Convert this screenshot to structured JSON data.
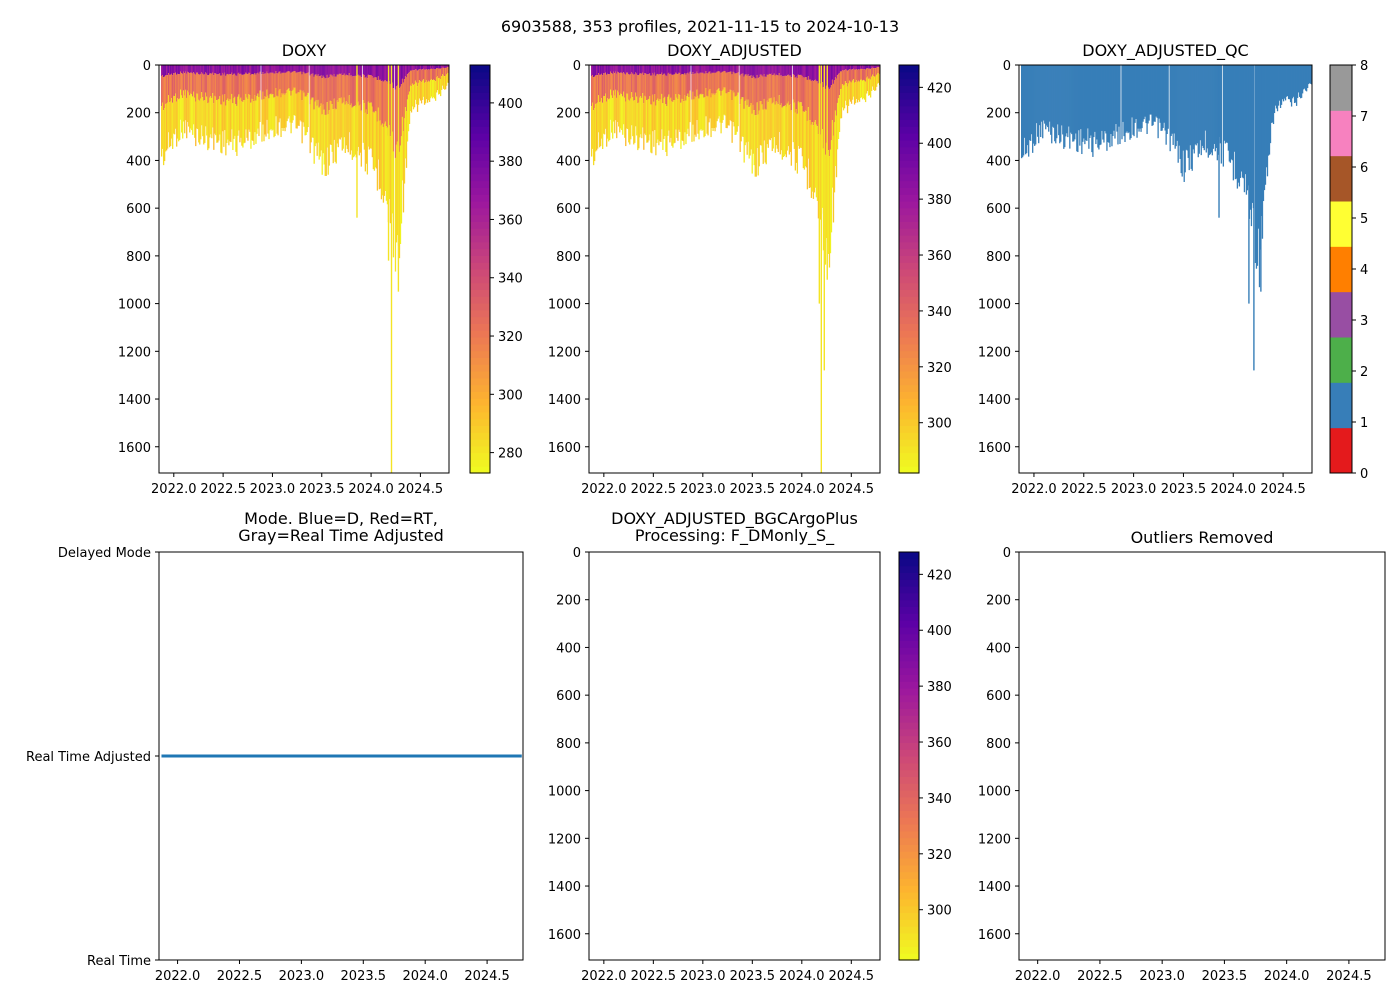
{
  "figure_title": "6903588, 353 profiles, 2021-11-15 to 2024-10-13",
  "colors": {
    "plasma_stops": [
      "#f0f921",
      "#fdb42f",
      "#ed7953",
      "#cc4778",
      "#9c179e",
      "#5c01a6",
      "#0d0887"
    ],
    "qc_blue": "#377eb8",
    "mode_line": "#1f77b4"
  },
  "chart_data": [
    {
      "id": "doxy",
      "type": "heatmap",
      "title": "DOXY",
      "xlim": [
        2021.85,
        2024.79
      ],
      "ylim": [
        1710,
        0
      ],
      "x_ticks": [
        "2022.0",
        "2022.5",
        "2023.0",
        "2023.5",
        "2024.0",
        "2024.5"
      ],
      "x_tick_values": [
        2022.0,
        2022.5,
        2023.0,
        2023.5,
        2024.0,
        2024.5
      ],
      "y_ticks": [
        "0",
        "200",
        "400",
        "600",
        "800",
        "1000",
        "1200",
        "1400",
        "1600"
      ],
      "y_tick_values": [
        0,
        200,
        400,
        600,
        800,
        1000,
        1200,
        1400,
        1600
      ],
      "colorbar": {
        "min": 273,
        "max": 413,
        "ticks": [
          "280",
          "300",
          "320",
          "340",
          "360",
          "380",
          "400"
        ],
        "tick_values": [
          280,
          300,
          320,
          340,
          360,
          380,
          400
        ]
      },
      "profile_depth_x": [
        2021.87,
        2022.0,
        2022.1,
        2022.2,
        2022.4,
        2022.6,
        2022.8,
        2023.0,
        2023.2,
        2023.35,
        2023.5,
        2023.7,
        2023.85,
        2024.0,
        2024.1,
        2024.2,
        2024.25,
        2024.3,
        2024.4,
        2024.5,
        2024.6,
        2024.7,
        2024.77
      ],
      "profile_depth_y": [
        390,
        300,
        260,
        290,
        310,
        330,
        300,
        260,
        250,
        300,
        420,
        330,
        350,
        420,
        480,
        660,
        820,
        620,
        200,
        150,
        160,
        110,
        80
      ],
      "deep_spikes": [
        [
          2023.85,
          640
        ],
        [
          2024.17,
          820
        ],
        [
          2024.2,
          1710
        ],
        [
          2024.27,
          950
        ]
      ]
    },
    {
      "id": "doxy_adjusted",
      "type": "heatmap",
      "title": "DOXY_ADJUSTED",
      "xlim": [
        2021.85,
        2024.79
      ],
      "ylim": [
        1710,
        0
      ],
      "x_ticks": [
        "2022.0",
        "2022.5",
        "2023.0",
        "2023.5",
        "2024.0",
        "2024.5"
      ],
      "x_tick_values": [
        2022.0,
        2022.5,
        2023.0,
        2023.5,
        2024.0,
        2024.5
      ],
      "y_ticks": [
        "0",
        "200",
        "400",
        "600",
        "800",
        "1000",
        "1200",
        "1400",
        "1600"
      ],
      "y_tick_values": [
        0,
        200,
        400,
        600,
        800,
        1000,
        1200,
        1400,
        1600
      ],
      "colorbar": {
        "min": 282,
        "max": 428,
        "ticks": [
          "300",
          "320",
          "340",
          "360",
          "380",
          "400",
          "420"
        ],
        "tick_values": [
          300,
          320,
          340,
          360,
          380,
          400,
          420
        ]
      },
      "profile_depth_x": [
        2021.87,
        2022.0,
        2022.1,
        2022.2,
        2022.4,
        2022.6,
        2022.8,
        2023.0,
        2023.2,
        2023.35,
        2023.5,
        2023.7,
        2023.85,
        2024.0,
        2024.1,
        2024.2,
        2024.25,
        2024.3,
        2024.4,
        2024.5,
        2024.6,
        2024.7,
        2024.77
      ],
      "profile_depth_y": [
        390,
        300,
        260,
        290,
        310,
        330,
        300,
        260,
        250,
        300,
        420,
        330,
        350,
        420,
        480,
        660,
        820,
        620,
        200,
        150,
        160,
        110,
        80
      ],
      "deep_spikes": [
        [
          2024.17,
          1000
        ],
        [
          2024.19,
          1710
        ],
        [
          2024.22,
          1280
        ],
        [
          2024.25,
          900
        ]
      ]
    },
    {
      "id": "doxy_adjusted_qc",
      "type": "heatmap",
      "title": "DOXY_ADJUSTED_QC",
      "xlim": [
        2021.85,
        2024.79
      ],
      "ylim": [
        1710,
        0
      ],
      "x_ticks": [
        "2022.0",
        "2022.5",
        "2023.0",
        "2023.5",
        "2024.0",
        "2024.5"
      ],
      "x_tick_values": [
        2022.0,
        2022.5,
        2023.0,
        2023.5,
        2024.0,
        2024.5
      ],
      "y_ticks": [
        "0",
        "200",
        "400",
        "600",
        "800",
        "1000",
        "1200",
        "1400",
        "1600"
      ],
      "y_tick_values": [
        0,
        200,
        400,
        600,
        800,
        1000,
        1200,
        1400,
        1600
      ],
      "colorbar": {
        "min": 0,
        "max": 8,
        "ticks": [
          "0",
          "1",
          "2",
          "3",
          "4",
          "5",
          "6",
          "7",
          "8"
        ],
        "tick_values": [
          0,
          1,
          2,
          3,
          4,
          5,
          6,
          7,
          8
        ],
        "categories": [
          "#e41a1c",
          "#377eb8",
          "#4daf4a",
          "#984ea3",
          "#ff7f00",
          "#ffff33",
          "#a65628",
          "#f781bf",
          "#999999"
        ]
      },
      "profile_depth_x": [
        2021.87,
        2022.0,
        2022.1,
        2022.2,
        2022.4,
        2022.6,
        2022.8,
        2023.0,
        2023.2,
        2023.35,
        2023.5,
        2023.7,
        2023.85,
        2024.0,
        2024.1,
        2024.2,
        2024.25,
        2024.3,
        2024.4,
        2024.5,
        2024.6,
        2024.7,
        2024.77
      ],
      "profile_depth_y": [
        390,
        300,
        260,
        290,
        310,
        330,
        300,
        260,
        250,
        300,
        420,
        330,
        350,
        420,
        480,
        660,
        820,
        620,
        200,
        150,
        160,
        110,
        80
      ],
      "deep_spikes": [
        [
          2023.85,
          640
        ],
        [
          2024.15,
          1000
        ],
        [
          2024.2,
          1280
        ],
        [
          2024.27,
          950
        ]
      ]
    },
    {
      "id": "mode",
      "type": "line",
      "title": "Mode. Blue=D, Red=RT,\nGray=Real Time Adjusted",
      "xlim": [
        2021.85,
        2024.79
      ],
      "ylim": [
        0,
        2
      ],
      "x_ticks": [
        "2022.0",
        "2022.5",
        "2023.0",
        "2023.5",
        "2024.0",
        "2024.5"
      ],
      "x_tick_values": [
        2022.0,
        2022.5,
        2023.0,
        2023.5,
        2024.0,
        2024.5
      ],
      "y_ticks": [
        "Real Time",
        "Real Time Adjusted",
        "Delayed Mode"
      ],
      "y_tick_values": [
        0,
        1,
        2
      ],
      "series": [
        {
          "name": "mode",
          "x": [
            2021.87,
            2024.78
          ],
          "y": [
            1,
            1
          ]
        }
      ]
    },
    {
      "id": "bgcargoplus",
      "type": "heatmap",
      "title": "DOXY_ADJUSTED_BGCArgoPlus\nProcessing: F_DMonly_S_",
      "xlim": [
        2021.85,
        2024.79
      ],
      "ylim": [
        1710,
        0
      ],
      "x_ticks": [
        "2022.0",
        "2022.5",
        "2023.0",
        "2023.5",
        "2024.0",
        "2024.5"
      ],
      "x_tick_values": [
        2022.0,
        2022.5,
        2023.0,
        2023.5,
        2024.0,
        2024.5
      ],
      "y_ticks": [
        "0",
        "200",
        "400",
        "600",
        "800",
        "1000",
        "1200",
        "1400",
        "1600"
      ],
      "y_tick_values": [
        0,
        200,
        400,
        600,
        800,
        1000,
        1200,
        1400,
        1600
      ],
      "colorbar": {
        "min": 282,
        "max": 428,
        "ticks": [
          "300",
          "320",
          "340",
          "360",
          "380",
          "400",
          "420"
        ],
        "tick_values": [
          300,
          320,
          340,
          360,
          380,
          400,
          420
        ]
      }
    },
    {
      "id": "outliers",
      "type": "scatter",
      "title": "Outliers Removed",
      "xlim": [
        2021.85,
        2024.79
      ],
      "ylim": [
        1710,
        0
      ],
      "x_ticks": [
        "2022.0",
        "2022.5",
        "2023.0",
        "2023.5",
        "2024.0",
        "2024.5"
      ],
      "x_tick_values": [
        2022.0,
        2022.5,
        2023.0,
        2023.5,
        2024.0,
        2024.5
      ],
      "y_ticks": [
        "0",
        "200",
        "400",
        "600",
        "800",
        "1000",
        "1200",
        "1400",
        "1600"
      ],
      "y_tick_values": [
        0,
        200,
        400,
        600,
        800,
        1000,
        1200,
        1400,
        1600
      ]
    }
  ]
}
